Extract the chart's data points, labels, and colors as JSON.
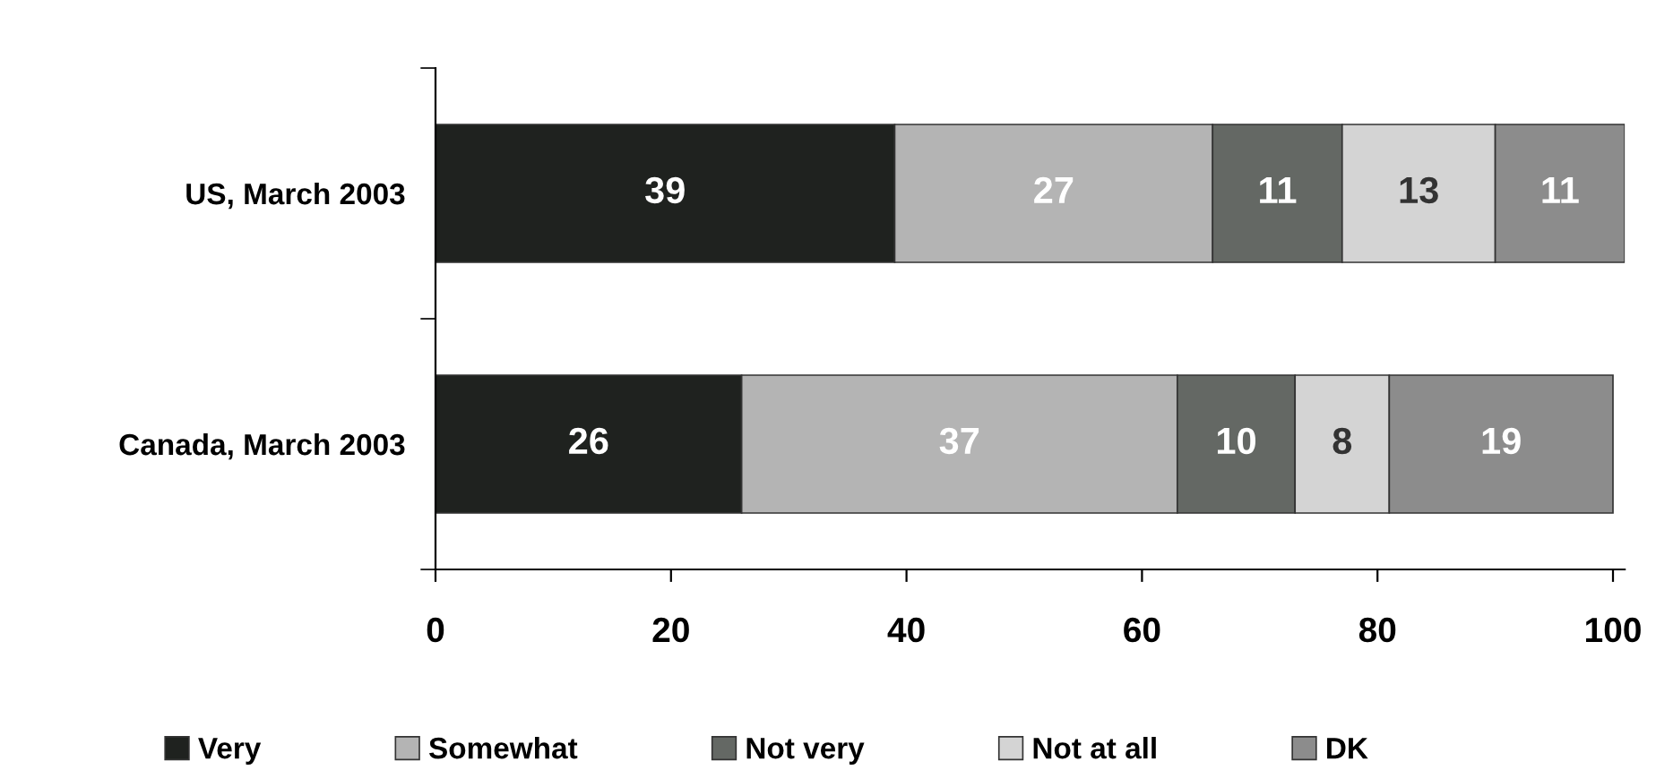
{
  "chart_data": {
    "type": "bar",
    "orientation": "horizontal",
    "stacked": true,
    "categories": [
      "US, March 2003",
      "Canada, March 2003"
    ],
    "series": [
      {
        "name": "Very",
        "color": "#1f221f",
        "values": [
          39,
          26
        ]
      },
      {
        "name": "Somewhat",
        "color": "#b4b4b4",
        "values": [
          27,
          37
        ]
      },
      {
        "name": "Not very",
        "color": "#646864",
        "values": [
          11,
          10
        ]
      },
      {
        "name": "Not at all",
        "color": "#d4d4d4",
        "values": [
          13,
          8
        ]
      },
      {
        "name": "DK",
        "color": "#8c8c8c",
        "values": [
          11,
          19
        ]
      }
    ],
    "xlim": [
      0,
      101
    ],
    "xticks": [
      0,
      20,
      40,
      60,
      80,
      100
    ],
    "data_labels": true,
    "grid": false,
    "legend": "bottom"
  }
}
